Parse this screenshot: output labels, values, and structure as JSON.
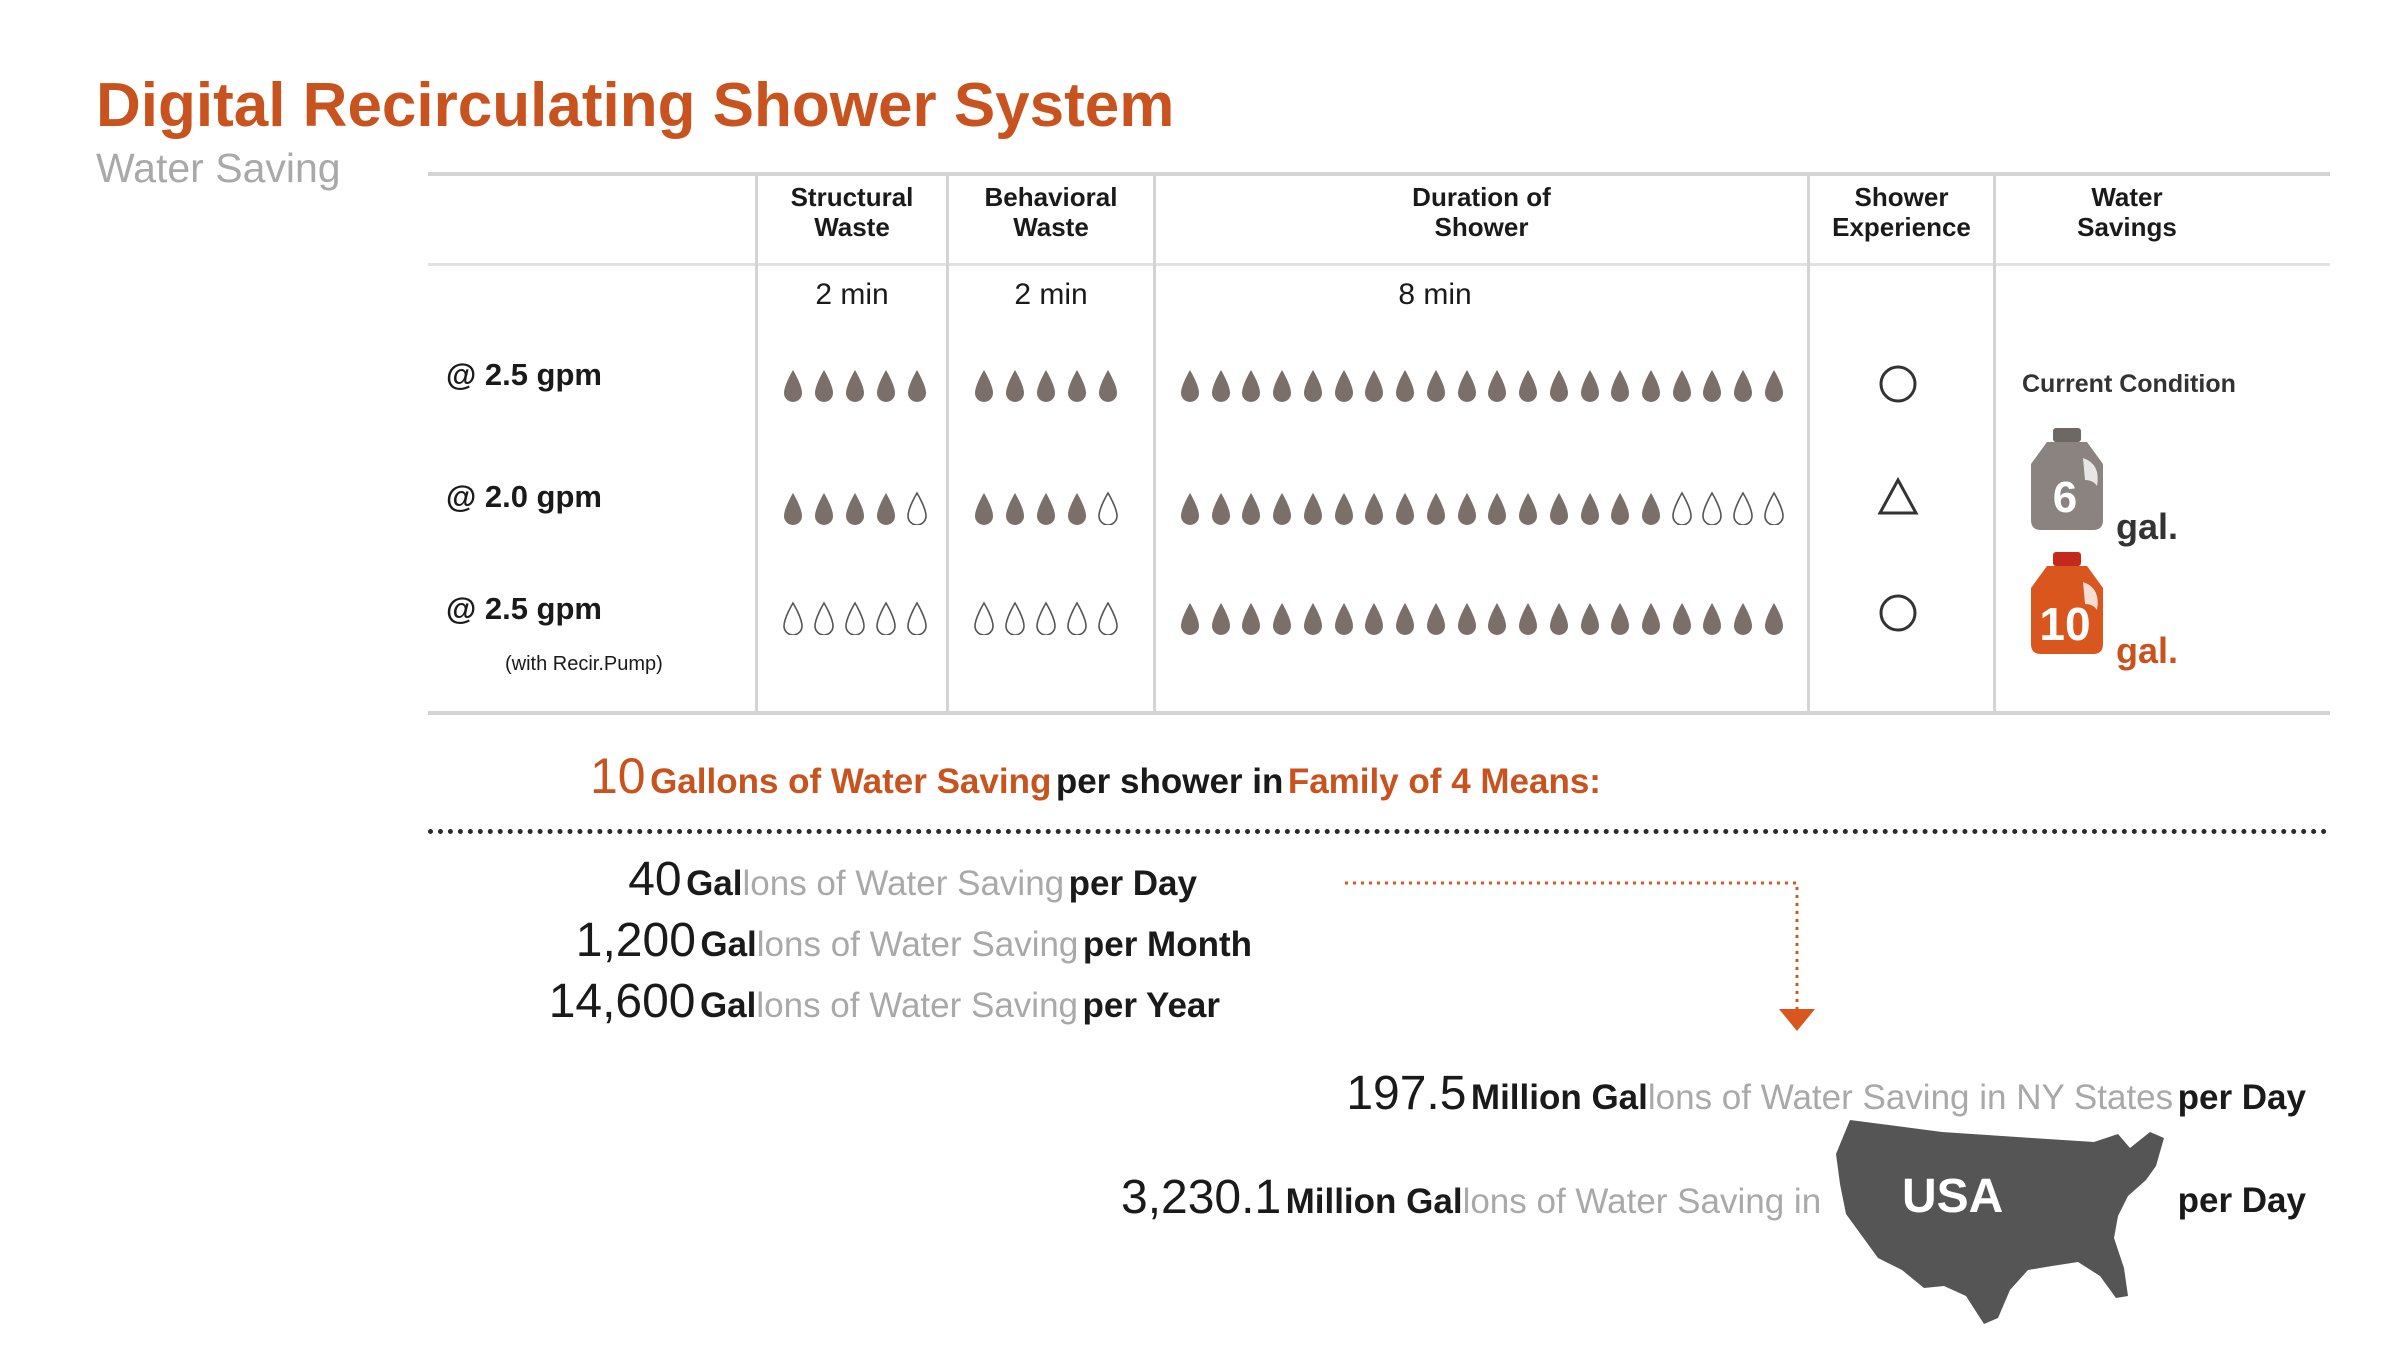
{
  "title": "Digital Recirculating Shower System",
  "subtitle": "Water Saving",
  "table": {
    "headers": {
      "structural": "Structural\nWaste",
      "behavioral": "Behavioral\nWaste",
      "duration": "Duration of\nShower",
      "experience": "Shower\nExperience",
      "savings": "Water\nSavings"
    },
    "minutes": {
      "structural": "2 min",
      "behavioral": "2 min",
      "duration": "8 min"
    },
    "rows": [
      {
        "label": "@ 2.5 gpm",
        "sub": "",
        "structural_filled": 5,
        "behavioral_filled": 5,
        "duration_filled": 20,
        "experience": "circle"
      },
      {
        "label": "@ 2.0 gpm",
        "sub": "",
        "structural_filled": 4,
        "behavioral_filled": 4,
        "duration_filled": 16,
        "experience": "triangle"
      },
      {
        "label": "@ 2.5 gpm",
        "sub": "(with Recir.Pump)",
        "structural_filled": 0,
        "behavioral_filled": 0,
        "duration_filled": 20,
        "experience": "circle"
      }
    ],
    "drops_per_cell": {
      "structural": 5,
      "behavioral": 5,
      "duration": 20
    },
    "current_condition": "Current Condition",
    "jug_grey": {
      "value": "6",
      "unit": "gal."
    },
    "jug_orange": {
      "value": "10",
      "unit": "gal."
    }
  },
  "headline": {
    "num": "10",
    "p1": "Gallons of Water Saving",
    "p2": "per shower in",
    "p3": "Family of 4 Means:"
  },
  "stats": [
    {
      "num": "40",
      "gal": "Gal",
      "rest": "lons of Water Saving",
      "period": "per Day"
    },
    {
      "num": "1,200",
      "gal": "Gal",
      "rest": "lons of Water Saving",
      "period": "per Month"
    },
    {
      "num": "14,600",
      "gal": "Gal",
      "rest": "lons of Water Saving",
      "period": "per Year"
    }
  ],
  "ny": {
    "num": "197.5",
    "mid": "Million Gal",
    "rest": "lons of Water Saving in NY States",
    "period": "per Day"
  },
  "usa": {
    "num": "3,230.1",
    "mid": "Million Gal",
    "rest": "lons of Water Saving in",
    "map_label": "USA",
    "period": "per Day"
  },
  "colors": {
    "accent": "#c9531f",
    "drop": "#7a7069",
    "muted": "#a9a9a9",
    "map": "#555555",
    "jug_grey": "#8a837f"
  },
  "icons": [
    "water-drop-icon",
    "circle-icon",
    "triangle-icon",
    "gallon-jug-icon",
    "usa-map-icon",
    "down-arrow-icon"
  ]
}
